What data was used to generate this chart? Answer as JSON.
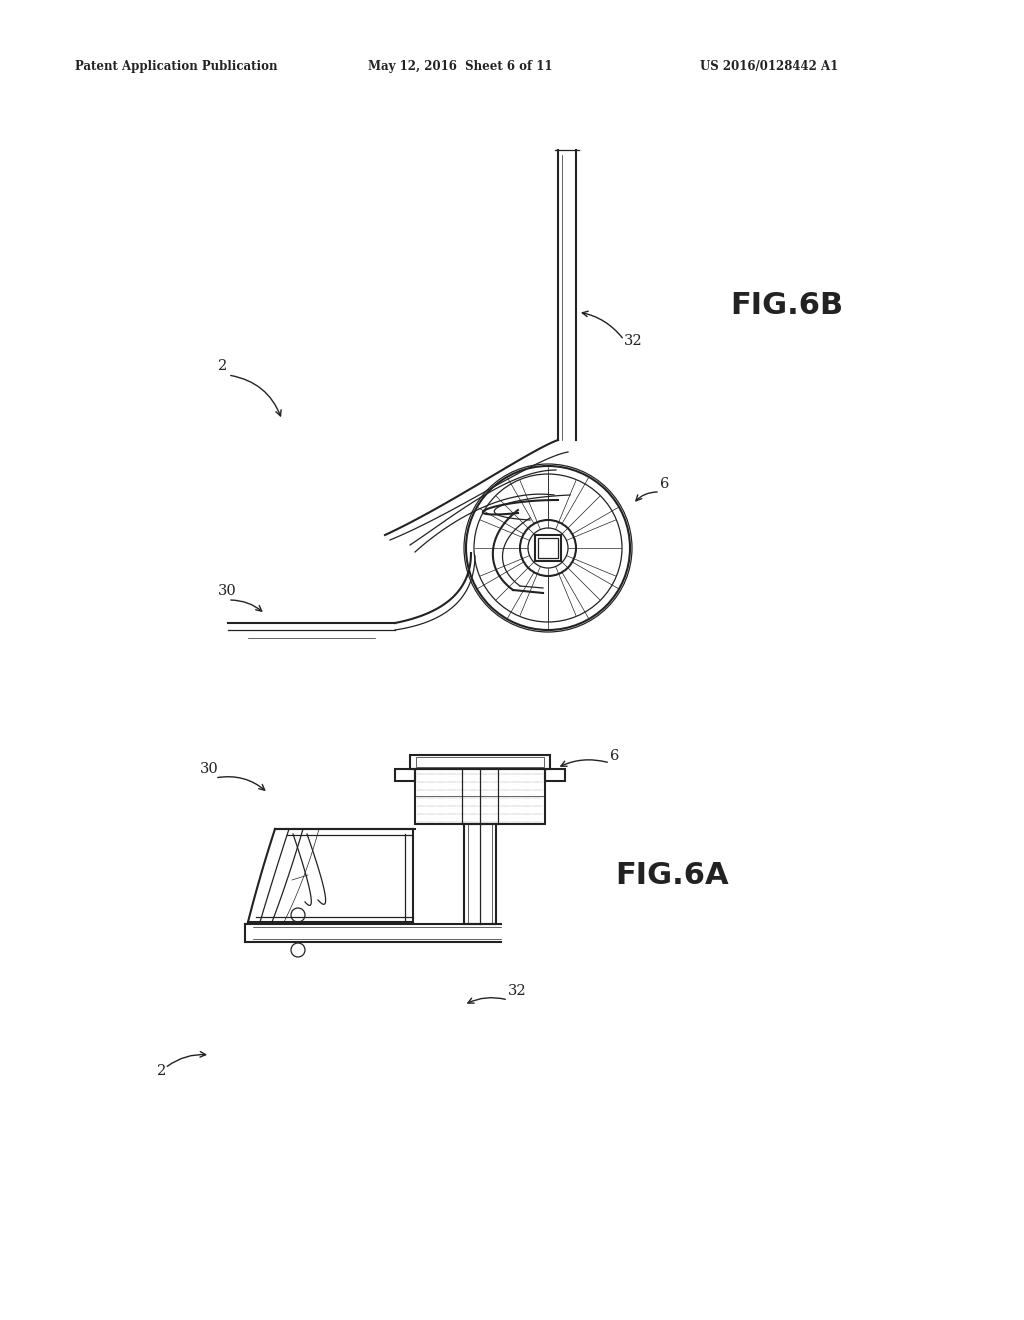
{
  "bg_color": "#ffffff",
  "lc": "#222222",
  "header_left": "Patent Application Publication",
  "header_mid": "May 12, 2016  Sheet 6 of 11",
  "header_right": "US 2016/0128442 A1",
  "fig6b_label": "FIG.6B",
  "fig6a_label": "FIG.6A"
}
